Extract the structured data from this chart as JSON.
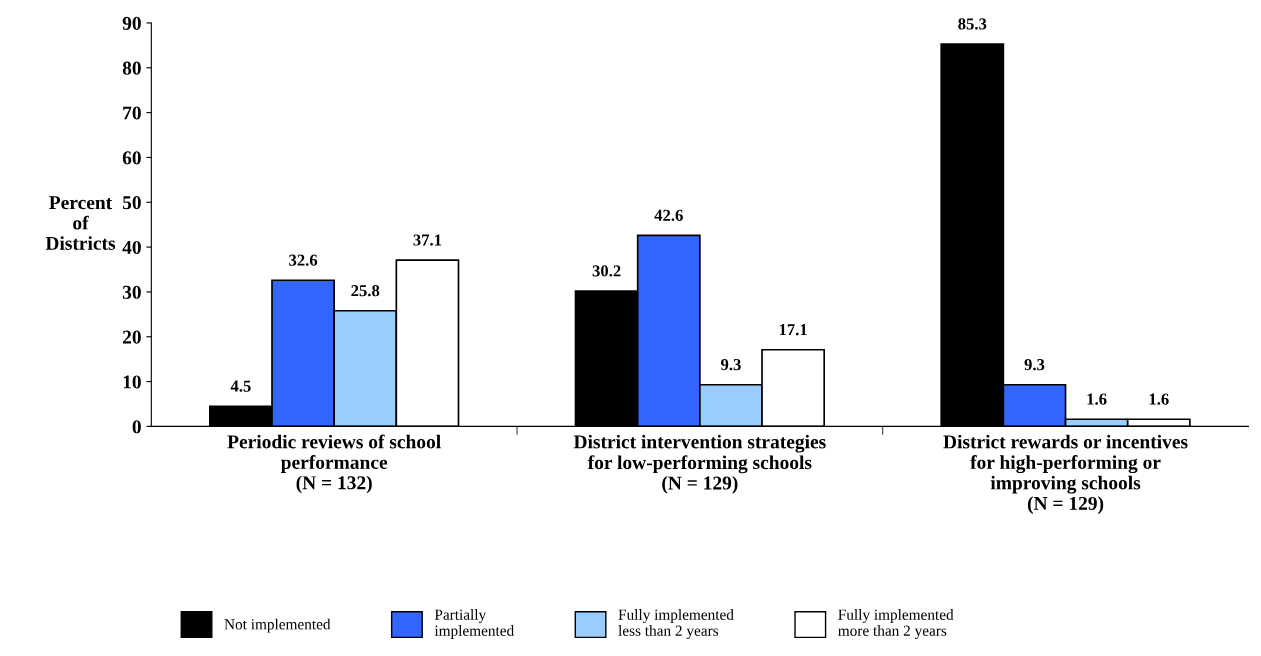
{
  "chart_data": {
    "type": "bar",
    "ylabel": "Percent\nof\nDistricts",
    "categories": [
      "Periodic reviews of school\nperformance\n(N = 132)",
      "District intervention strategies\nfor low-performing schools\n(N = 129)",
      "District rewards or incentives\nfor high-performing or\nimproving schools\n(N = 129)"
    ],
    "series": [
      {
        "name": "Not implemented",
        "color": "#000000",
        "values": [
          4.5,
          30.2,
          85.3
        ]
      },
      {
        "name": "Partially\nimplemented",
        "color": "#3366ff",
        "values": [
          32.6,
          42.6,
          9.3
        ]
      },
      {
        "name": "Fully implemented\nless than 2 years",
        "color": "#99ccff",
        "values": [
          25.8,
          9.3,
          1.6
        ]
      },
      {
        "name": "Fully implemented\nmore than 2 years",
        "color": "#ffffff",
        "values": [
          37.1,
          17.1,
          1.6
        ]
      }
    ],
    "ylim": [
      0,
      90
    ],
    "yticks": [
      0,
      10,
      20,
      30,
      40,
      50,
      60,
      70,
      80,
      90
    ],
    "data_labels": true,
    "grid": false,
    "legend": "bottom"
  }
}
